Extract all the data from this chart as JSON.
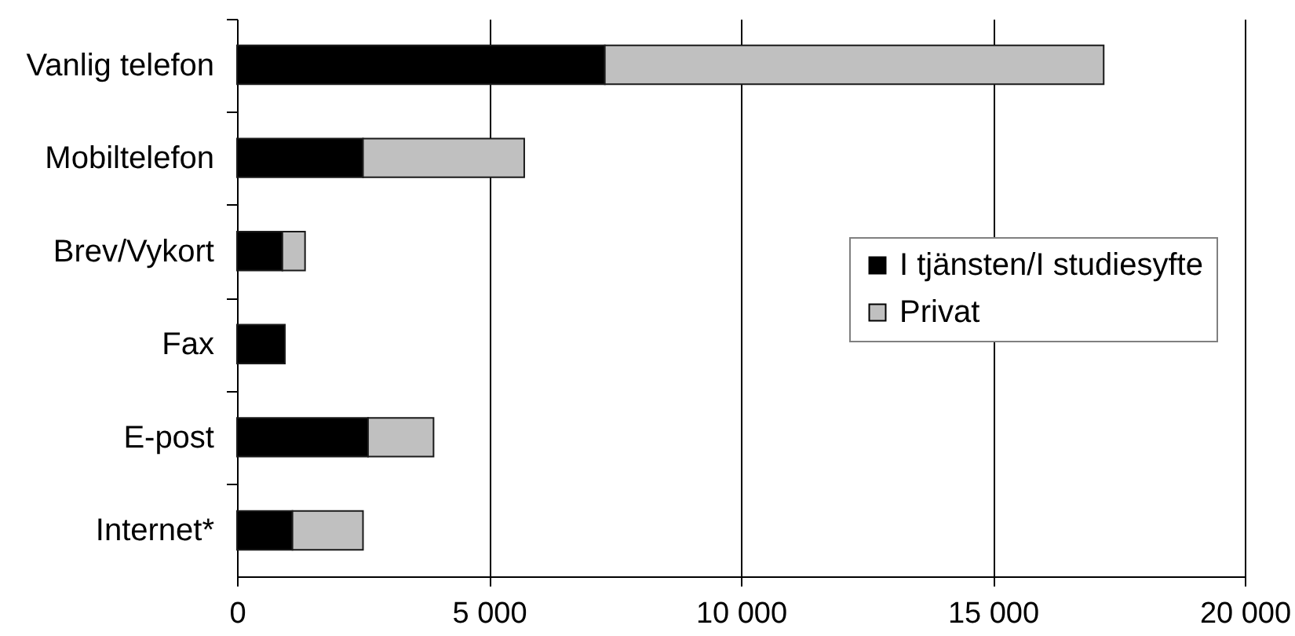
{
  "chart_data": {
    "type": "bar",
    "orientation": "horizontal",
    "stacked": true,
    "categories": [
      "Vanlig telefon",
      "Mobiltelefon",
      "Brev/Vykort",
      "Fax",
      "E-post",
      "Internet*"
    ],
    "series": [
      {
        "name": "I tjänsten/I studiesyfte",
        "color": "#000000",
        "values": [
          7300,
          2500,
          900,
          950,
          2600,
          1100
        ]
      },
      {
        "name": "Privat",
        "color": "#c0c0c0",
        "values": [
          9900,
          3200,
          450,
          null,
          1300,
          1400
        ]
      }
    ],
    "xlim": [
      0,
      20000
    ],
    "xticks": [
      0,
      {
        "value": 5000,
        "label": "5 000"
      },
      {
        "value": 10000,
        "label": "10 000"
      },
      {
        "value": 15000,
        "label": "15 000"
      },
      {
        "value": 20000,
        "label": "20 000"
      }
    ],
    "grid": "x",
    "legend": "right"
  }
}
